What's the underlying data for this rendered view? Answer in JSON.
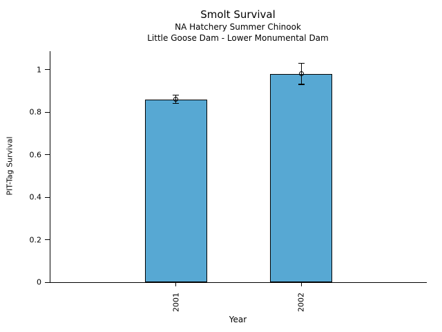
{
  "chart_data": {
    "type": "bar",
    "title": "Smolt Survival",
    "subtitle1": "NA Hatchery Summer Chinook",
    "subtitle2": "Little Goose Dam - Lower Monumental Dam",
    "xlabel": "Year",
    "ylabel": "PIT-Tag Survival",
    "categories": [
      "2001",
      "2002"
    ],
    "values": [
      0.86,
      0.98
    ],
    "error_bars": [
      0.02,
      0.05
    ],
    "yticks": [
      0,
      0.2,
      0.4,
      0.6,
      0.8,
      1
    ],
    "ylim": [
      0,
      1.086
    ],
    "grid": false,
    "legend_position": "none",
    "marker": "open-circle",
    "bar_fill_color": "#57A8D3",
    "bar_edge_color": "#000000",
    "error_bar_color": "#000000",
    "background_color": "#FFFFFF"
  }
}
